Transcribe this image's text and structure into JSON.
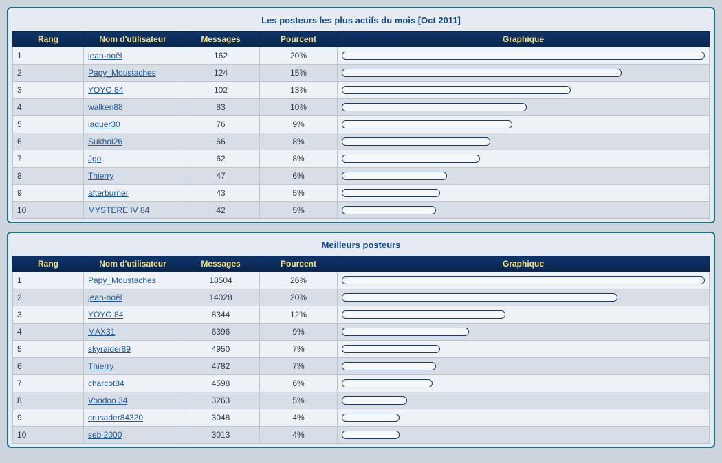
{
  "columns": {
    "rank": "Rang",
    "user": "Nom d'utilisateur",
    "messages": "Messages",
    "percent": "Pourcent",
    "graph": "Graphique"
  },
  "panels": [
    {
      "title": "Les posteurs les plus actifs du mois [Oct 2011]",
      "rows": [
        {
          "rank": "1",
          "user": "jean-noël",
          "messages": "162",
          "percent": "20%",
          "bar": 100
        },
        {
          "rank": "2",
          "user": "Papy_Moustaches",
          "messages": "124",
          "percent": "15%",
          "bar": 77
        },
        {
          "rank": "3",
          "user": "YOYO 84",
          "messages": "102",
          "percent": "13%",
          "bar": 63
        },
        {
          "rank": "4",
          "user": "walken88",
          "messages": "83",
          "percent": "10%",
          "bar": 51
        },
        {
          "rank": "5",
          "user": "laquer30",
          "messages": "76",
          "percent": "9%",
          "bar": 47
        },
        {
          "rank": "6",
          "user": "Sukhoi26",
          "messages": "66",
          "percent": "8%",
          "bar": 41
        },
        {
          "rank": "7",
          "user": "Jgo",
          "messages": "62",
          "percent": "8%",
          "bar": 38
        },
        {
          "rank": "8",
          "user": "Thierry",
          "messages": "47",
          "percent": "6%",
          "bar": 29
        },
        {
          "rank": "9",
          "user": "afterburner",
          "messages": "43",
          "percent": "5%",
          "bar": 27
        },
        {
          "rank": "10",
          "user": "MYSTERE IV 84",
          "messages": "42",
          "percent": "5%",
          "bar": 26
        }
      ]
    },
    {
      "title": "Meilleurs posteurs",
      "rows": [
        {
          "rank": "1",
          "user": "Papy_Moustaches",
          "messages": "18504",
          "percent": "26%",
          "bar": 100
        },
        {
          "rank": "2",
          "user": "jean-noël",
          "messages": "14028",
          "percent": "20%",
          "bar": 76
        },
        {
          "rank": "3",
          "user": "YOYO 84",
          "messages": "8344",
          "percent": "12%",
          "bar": 45
        },
        {
          "rank": "4",
          "user": "MAX31",
          "messages": "6396",
          "percent": "9%",
          "bar": 35
        },
        {
          "rank": "5",
          "user": "skyraider89",
          "messages": "4950",
          "percent": "7%",
          "bar": 27
        },
        {
          "rank": "6",
          "user": "Thierry",
          "messages": "4782",
          "percent": "7%",
          "bar": 26
        },
        {
          "rank": "7",
          "user": "charcot84",
          "messages": "4598",
          "percent": "6%",
          "bar": 25
        },
        {
          "rank": "8",
          "user": "Voodoo 34",
          "messages": "3263",
          "percent": "5%",
          "bar": 18
        },
        {
          "rank": "9",
          "user": "crusader84320",
          "messages": "3048",
          "percent": "4%",
          "bar": 16
        },
        {
          "rank": "10",
          "user": "seb 2000",
          "messages": "3013",
          "percent": "4%",
          "bar": 16
        }
      ]
    }
  ]
}
